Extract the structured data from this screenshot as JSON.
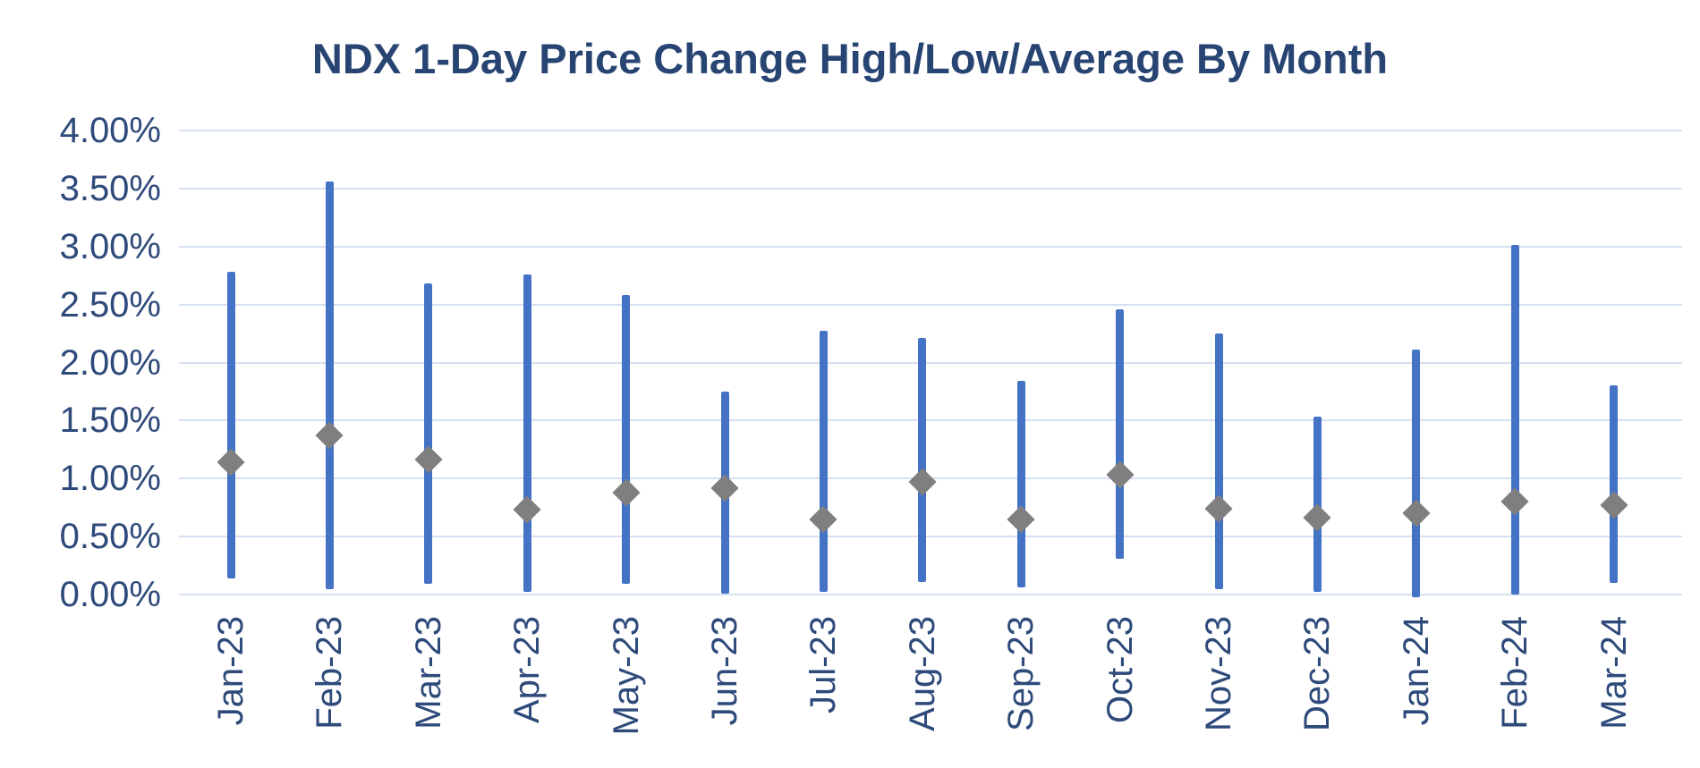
{
  "chart_data": {
    "type": "bar",
    "variant": "high-low range bars with average diamond markers",
    "title": "NDX 1-Day Price Change High/Low/Average By Month",
    "xlabel": "",
    "ylabel": "",
    "ylim": [
      0,
      4
    ],
    "grid": true,
    "legend_position": "none",
    "yticks": [
      "4.00%",
      "3.50%",
      "3.00%",
      "2.50%",
      "2.00%",
      "1.50%",
      "1.00%",
      "0.50%",
      "0.00%"
    ],
    "ytick_values": [
      4.0,
      3.5,
      3.0,
      2.5,
      2.0,
      1.5,
      1.0,
      0.5,
      0.0
    ],
    "categories": [
      "Jan-23",
      "Feb-23",
      "Mar-23",
      "Apr-23",
      "May-23",
      "Jun-23",
      "Jul-23",
      "Aug-23",
      "Sep-23",
      "Oct-23",
      "Nov-23",
      "Dec-23",
      "Jan-24",
      "Feb-24",
      "Mar-24"
    ],
    "series": [
      {
        "name": "High",
        "values": [
          2.78,
          3.56,
          2.68,
          2.76,
          2.58,
          1.75,
          2.27,
          2.21,
          1.84,
          2.46,
          2.25,
          1.53,
          2.11,
          3.01,
          1.8
        ]
      },
      {
        "name": "Low",
        "values": [
          0.14,
          0.05,
          0.09,
          0.02,
          0.09,
          0.01,
          0.02,
          0.11,
          0.06,
          0.31,
          0.05,
          0.02,
          -0.02,
          0.0,
          0.1
        ]
      },
      {
        "name": "Average",
        "values": [
          1.14,
          1.37,
          1.16,
          0.73,
          0.88,
          0.92,
          0.65,
          0.97,
          0.65,
          1.03,
          0.74,
          0.66,
          0.7,
          0.8,
          0.77
        ]
      }
    ]
  },
  "colors": {
    "bar": "#4472C4",
    "average_marker": "#7F7F7F",
    "title_text": "#274472",
    "axis_text": "#2E4A7A",
    "gridline": "#D5E0F2",
    "background": "#FFFFFF"
  },
  "marker": {
    "shape": "diamond"
  }
}
